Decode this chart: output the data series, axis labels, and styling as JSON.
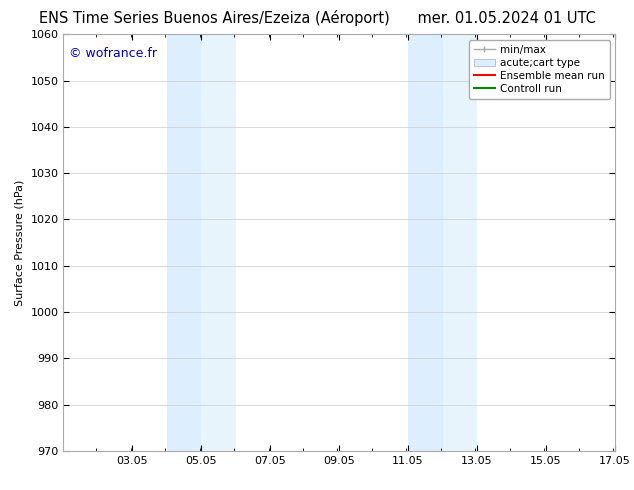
{
  "title_left": "ENS Time Series Buenos Aires/Ezeiza (Aéroport)",
  "title_right": "mer. 01.05.2024 01 UTC",
  "ylabel": "Surface Pressure (hPa)",
  "ylim": [
    970,
    1060
  ],
  "yticks": [
    970,
    980,
    990,
    1000,
    1010,
    1020,
    1030,
    1040,
    1050,
    1060
  ],
  "xlim": [
    1.05,
    17.05
  ],
  "xticks": [
    3.05,
    5.05,
    7.05,
    9.05,
    11.05,
    13.05,
    15.05,
    17.05
  ],
  "xticklabels": [
    "03.05",
    "05.05",
    "07.05",
    "09.05",
    "11.05",
    "13.05",
    "15.05",
    "17.05"
  ],
  "background_color": "#ffffff",
  "plot_bg_color": "#ffffff",
  "shaded_regions": [
    {
      "xmin": 4.05,
      "xmax": 5.05,
      "color": "#ddeeff"
    },
    {
      "xmin": 5.05,
      "xmax": 6.05,
      "color": "#e8f4fc"
    },
    {
      "xmin": 11.05,
      "xmax": 12.05,
      "color": "#ddeeff"
    },
    {
      "xmin": 12.05,
      "xmax": 13.05,
      "color": "#e8f4fc"
    }
  ],
  "watermark_text": "© wofrance.fr",
  "watermark_color": "#0000bb",
  "watermark_fontsize": 9,
  "legend_entries": [
    {
      "label": "min/max"
    },
    {
      "label": "acute;cart type"
    },
    {
      "label": "Ensemble mean run"
    },
    {
      "label": "Controll run"
    }
  ],
  "legend_minmax_color": "#aaaaaa",
  "legend_band_color": "#ddeeff",
  "legend_band_edge_color": "#aaaacc",
  "legend_mean_color": "#ff0000",
  "legend_control_color": "#008800",
  "grid_color": "#cccccc",
  "spine_color": "#aaaaaa",
  "tick_direction": "in",
  "font_size": 8,
  "title_font_size": 10.5
}
